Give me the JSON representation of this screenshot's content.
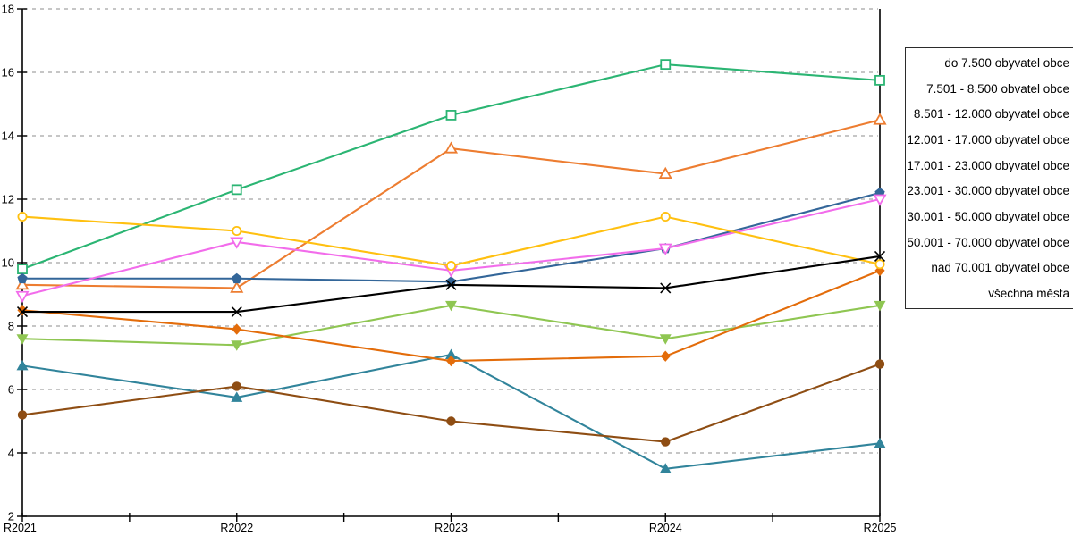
{
  "chart_data": {
    "type": "line",
    "title": "",
    "xlabel": "",
    "ylabel": "",
    "x_categories": [
      "R2021",
      "R2022",
      "R2023",
      "R2024",
      "R2025"
    ],
    "ylim": [
      2,
      18
    ],
    "ytick_step": 2,
    "ytick_labels": [
      "2",
      "4",
      "6",
      "8",
      "10",
      "12",
      "14",
      "16",
      "18"
    ],
    "grid": "horizontal-dashed",
    "grid_color": "#b3b3b3",
    "axis_color": "#000000",
    "legend_position": "right-outside",
    "series": [
      {
        "name": "do 7.500 obyvatel obce",
        "color": "#FFC010",
        "marker": "circle-open",
        "values": [
          11.45,
          11.0,
          9.9,
          11.45,
          9.95
        ]
      },
      {
        "name": "7.501 - 8.500 obvatel obce",
        "color": "#2BB573",
        "marker": "square-open",
        "values": [
          9.8,
          12.3,
          14.65,
          16.25,
          15.75
        ]
      },
      {
        "name": "8.501 - 12.000 obyvatel obce",
        "color": "#ED7D31",
        "marker": "triangle-up-open",
        "values": [
          9.3,
          9.2,
          13.6,
          12.8,
          14.5
        ]
      },
      {
        "name": "12.001 - 17.000 obyvatel obce",
        "color": "#F26CEB",
        "marker": "triangle-down-open",
        "values": [
          8.95,
          10.65,
          9.75,
          10.45,
          12.0
        ]
      },
      {
        "name": "17.001 - 23.000 obyvatel obce",
        "color": "#336699",
        "marker": "pentagon-filled",
        "values": [
          9.5,
          9.5,
          9.4,
          10.45,
          12.2
        ]
      },
      {
        "name": "23.001 - 30.000 obyvatel obce",
        "color": "#E36C0A",
        "marker": "diamond-filled",
        "values": [
          8.5,
          7.9,
          6.9,
          7.05,
          9.75
        ]
      },
      {
        "name": "30.001 - 50.000 obyvatel obce",
        "color": "#8FC652",
        "marker": "triangle-down-filled",
        "values": [
          7.6,
          7.4,
          8.65,
          7.6,
          8.65
        ]
      },
      {
        "name": "50.001 - 70.000 obyvatel obce",
        "color": "#31849B",
        "marker": "triangle-up-filled",
        "values": [
          6.75,
          5.75,
          7.1,
          3.5,
          4.3
        ]
      },
      {
        "name": "nad 70.001 obyvatel obce",
        "color": "#8E4D13",
        "marker": "circle-filled",
        "values": [
          5.2,
          6.1,
          5.0,
          4.35,
          6.8
        ]
      },
      {
        "name": "všechna města",
        "color": "#000000",
        "marker": "x",
        "values": [
          8.45,
          8.45,
          9.3,
          9.2,
          10.2
        ]
      }
    ],
    "legend_labels": [
      "do 7.500 obyvatel obce",
      "7.501 - 8.500 obvatel obce",
      "8.501 - 12.000 obyvatel obce",
      "12.001 - 17.000 obyvatel obce",
      "17.001 - 23.000 obyvatel obce",
      "23.001 - 30.000 obyvatel obce",
      "30.001 - 50.000 obyvatel obce",
      "50.001 - 70.000 obyvatel obce",
      "nad 70.001 obyvatel obce",
      "všechna města"
    ]
  }
}
